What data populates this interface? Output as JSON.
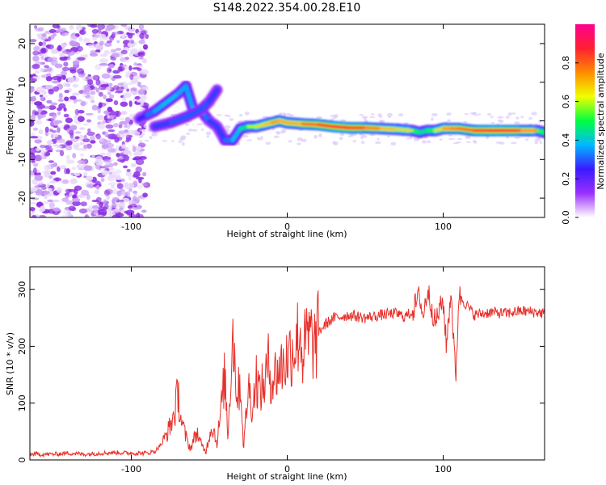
{
  "figure_title": "S148.2022.354.00.28.E10",
  "colors": {
    "snr_line": "#e8302a",
    "axis": "#000000",
    "colormap": [
      "#ffffff",
      "#9b30ff",
      "#3a1aff",
      "#00b8ff",
      "#00ff40",
      "#f0ff00",
      "#ff8c00",
      "#ff2030",
      "#ff0090"
    ]
  },
  "chart_data": [
    {
      "type": "heatmap",
      "title": "",
      "xlabel": "Height of straight line (km)",
      "ylabel": "Frequency (Hz)",
      "xlim": [
        -165,
        165
      ],
      "ylim": [
        -25,
        25
      ],
      "xticks": [
        -100,
        0,
        100
      ],
      "yticks": [
        -20,
        -10,
        0,
        10,
        20
      ],
      "colorbar": {
        "label": "Normalized spectral amplitude",
        "range": [
          0,
          1
        ],
        "ticks": [
          "0.0",
          "0.2",
          "0.4",
          "0.6",
          "0.8"
        ],
        "tick_values": [
          0,
          0.2,
          0.4,
          0.6,
          0.8
        ]
      },
      "ridge": {
        "x": [
          -95,
          -90,
          -85,
          -80,
          -75,
          -70,
          -65,
          -60,
          -55,
          -50,
          -45,
          -40,
          -35,
          -30,
          -25,
          -20,
          -15,
          -10,
          -5,
          0,
          10,
          20,
          30,
          40,
          50,
          60,
          70,
          80,
          85,
          90,
          95,
          100,
          105,
          110,
          120,
          130,
          140,
          150,
          160,
          165
        ],
        "freq_hz": [
          0.5,
          1.5,
          2.5,
          4,
          5.5,
          7,
          9,
          2.5,
          2.5,
          0,
          -1.5,
          -5,
          -5,
          -2,
          -1.5,
          -1.5,
          -1,
          -0.5,
          0,
          -0.5,
          -0.8,
          -1,
          -1.5,
          -1.8,
          -1.8,
          -2,
          -2.2,
          -2.5,
          -3,
          -2.5,
          -2.5,
          -2,
          -2,
          -2,
          -2.5,
          -2.5,
          -2.5,
          -2.5,
          -2.5,
          -3
        ],
        "amplitude": [
          0.25,
          0.35,
          0.4,
          0.45,
          0.45,
          0.45,
          0.4,
          0.45,
          0.4,
          0.35,
          0.3,
          0.35,
          0.4,
          0.5,
          0.55,
          0.65,
          0.7,
          0.75,
          0.8,
          0.7,
          0.8,
          0.85,
          0.9,
          0.9,
          0.85,
          0.75,
          0.7,
          0.65,
          0.5,
          0.55,
          0.6,
          0.75,
          0.8,
          0.8,
          0.85,
          0.9,
          0.9,
          0.85,
          0.7,
          0.5
        ]
      },
      "branch": {
        "x": [
          -85,
          -75,
          -65,
          -55,
          -50,
          -45
        ],
        "freq_hz": [
          -1.5,
          -0.5,
          1,
          3,
          5,
          8
        ],
        "amplitude": [
          0.3,
          0.35,
          0.35,
          0.35,
          0.35,
          0.3
        ]
      },
      "noise_region": {
        "x": [
          -165,
          -90
        ],
        "amplitude": 0.15
      }
    },
    {
      "type": "line",
      "title": "",
      "xlabel": "Height of straight line (km)",
      "ylabel": "SNR (10 * v/v)",
      "xlim": [
        -165,
        165
      ],
      "ylim": [
        0,
        340
      ],
      "xticks": [
        -100,
        0,
        100
      ],
      "yticks": [
        0,
        100,
        200,
        300
      ],
      "series": [
        {
          "x": [
            -165,
            -150,
            -140,
            -130,
            -120,
            -110,
            -100,
            -90,
            -85,
            -80,
            -75,
            -72,
            -70,
            -68,
            -65,
            -62,
            -60,
            -58,
            -55,
            -52,
            -50,
            -48,
            -45,
            -42,
            -40,
            -38,
            -35,
            -32,
            -30,
            -28,
            -25,
            -22,
            -20,
            -18,
            -15,
            -12,
            -10,
            -8,
            -5,
            -2,
            0,
            2,
            5,
            8,
            10,
            12,
            15,
            18,
            20,
            25,
            30,
            40,
            50,
            60,
            70,
            75,
            80,
            85,
            87,
            90,
            95,
            97,
            100,
            102,
            105,
            108,
            110,
            120,
            130,
            140,
            150,
            160,
            165
          ],
          "y": [
            10,
            10,
            12,
            10,
            12,
            13,
            12,
            12,
            15,
            30,
            60,
            85,
            120,
            70,
            40,
            20,
            35,
            50,
            25,
            15,
            45,
            60,
            30,
            100,
            150,
            40,
            230,
            110,
            140,
            20,
            130,
            90,
            150,
            120,
            130,
            170,
            140,
            150,
            160,
            170,
            180,
            190,
            200,
            230,
            180,
            210,
            215,
            200,
            225,
            240,
            250,
            255,
            250,
            255,
            258,
            252,
            260,
            290,
            250,
            300,
            240,
            260,
            280,
            200,
            300,
            140,
            290,
            255,
            260,
            258,
            262,
            260,
            258
          ]
        }
      ]
    }
  ]
}
